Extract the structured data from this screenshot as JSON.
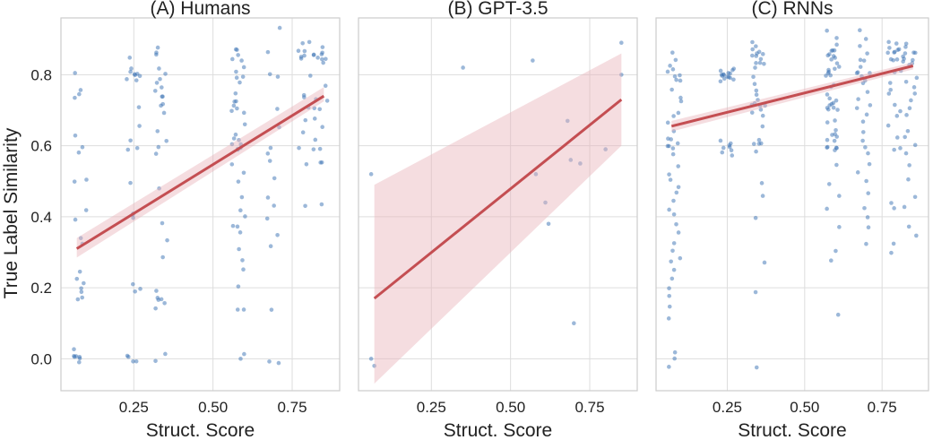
{
  "figure": {
    "ylabel": "True Label Similarity"
  },
  "style": {
    "point_color": "#3a72b3",
    "line_color": "#c44e52",
    "band_color": "#e8b4ba",
    "grid_color": "#dddddd",
    "frame_color": "#cccccc",
    "background": "#ffffff"
  },
  "chart_data": [
    {
      "type": "scatter",
      "title": "(A) Humans",
      "xlabel": "Struct. Score",
      "ylabel": "True Label Similarity",
      "xlim": [
        0.02,
        0.9
      ],
      "ylim": [
        -0.09,
        0.96
      ],
      "xticks": [
        0.25,
        0.5,
        0.75
      ],
      "xtick_labels": [
        "0.25",
        "0.50",
        "0.75"
      ],
      "yticks": [
        0.0,
        0.2,
        0.4,
        0.6,
        0.8
      ],
      "ytick_labels": [
        "0.0",
        "0.2",
        "0.4",
        "0.6",
        "0.8"
      ],
      "grid": true,
      "regression": {
        "x": [
          0.07,
          0.85
        ],
        "y": [
          0.31,
          0.74
        ],
        "band_low": [
          0.285,
          0.725
        ],
        "band_high": [
          0.34,
          0.765
        ]
      },
      "clusters": [
        {
          "x": 0.08,
          "y": [
            0.0,
            0.01,
            -0.01,
            0.02,
            0.2,
            0.22,
            0.18,
            0.25,
            0.33,
            0.34,
            0.4,
            0.41,
            0.5,
            0.51,
            0.58,
            0.6,
            0.62,
            0.75,
            0.76,
            0.8,
            0.17,
            0.0,
            0.0,
            0.01,
            0.19,
            0.21,
            0.74
          ]
        },
        {
          "x": 0.25,
          "y": [
            0.0,
            0.01,
            -0.01,
            0.2,
            0.21,
            0.4,
            0.41,
            0.5,
            0.6,
            0.61,
            0.7,
            0.79,
            0.8,
            0.81,
            0.82,
            0.85,
            0.78,
            0.8,
            0.79,
            0.8,
            0.58,
            0.39,
            0.19,
            0.0,
            0.66
          ]
        },
        {
          "x": 0.34,
          "y": [
            0.0,
            0.01,
            0.15,
            0.16,
            0.18,
            0.2,
            0.28,
            0.34,
            0.39,
            0.48,
            0.58,
            0.6,
            0.62,
            0.65,
            0.7,
            0.72,
            0.74,
            0.75,
            0.76,
            0.78,
            0.8,
            0.82,
            0.85,
            0.87,
            0.88,
            0.14,
            0.17,
            0.71,
            0.74,
            0.77
          ]
        },
        {
          "x": 0.58,
          "y": [
            0.0,
            0.01,
            0.13,
            0.14,
            0.2,
            0.27,
            0.3,
            0.35,
            0.38,
            0.4,
            0.42,
            0.45,
            0.5,
            0.52,
            0.55,
            0.58,
            0.6,
            0.61,
            0.62,
            0.64,
            0.66,
            0.7,
            0.71,
            0.72,
            0.74,
            0.78,
            0.8,
            0.81,
            0.82,
            0.85,
            0.86,
            0.87,
            0.88,
            0.6,
            0.59,
            0.7,
            0.71,
            0.8,
            0.37,
            0.26,
            0.62,
            0.73,
            0.84
          ]
        },
        {
          "x": 0.69,
          "y": [
            -0.01,
            -0.02,
            0.13,
            0.35,
            0.4,
            0.45,
            0.5,
            0.56,
            0.6,
            0.65,
            0.7,
            0.8,
            0.86,
            0.93,
            0.32,
            0.43,
            0.58,
            0.79
          ]
        },
        {
          "x": 0.79,
          "y": [
            0.43,
            0.55,
            0.6,
            0.63,
            0.7,
            0.73,
            0.75,
            0.8,
            0.85,
            0.87,
            0.88,
            0.89,
            0.68,
            0.86,
            0.87,
            0.85
          ]
        },
        {
          "x": 0.84,
          "y": [
            0.44,
            0.55,
            0.56,
            0.59,
            0.6,
            0.66,
            0.68,
            0.7,
            0.72,
            0.74,
            0.76,
            0.84,
            0.85,
            0.86,
            0.87,
            0.88,
            0.84,
            0.85,
            0.83,
            0.86,
            0.62,
            0.71
          ]
        }
      ]
    },
    {
      "type": "scatter",
      "title": "(B) GPT-3.5",
      "xlabel": "Struct. Score",
      "ylabel": "",
      "xlim": [
        0.02,
        0.9
      ],
      "ylim": [
        -0.09,
        0.96
      ],
      "xticks": [
        0.25,
        0.5,
        0.75
      ],
      "xtick_labels": [
        "0.25",
        "0.50",
        "0.75"
      ],
      "yticks": [
        0.0,
        0.2,
        0.4,
        0.6,
        0.8
      ],
      "ytick_labels": [
        "",
        "",
        "",
        "",
        ""
      ],
      "grid": true,
      "regression": {
        "x": [
          0.07,
          0.85
        ],
        "y": [
          0.17,
          0.73
        ],
        "band_low": [
          -0.07,
          0.6
        ],
        "band_high": [
          0.49,
          0.86
        ]
      },
      "points": [
        {
          "x": 0.06,
          "y": 0.52
        },
        {
          "x": 0.06,
          "y": 0.0
        },
        {
          "x": 0.07,
          "y": -0.02
        },
        {
          "x": 0.35,
          "y": 0.82
        },
        {
          "x": 0.57,
          "y": 0.84
        },
        {
          "x": 0.58,
          "y": 0.52
        },
        {
          "x": 0.61,
          "y": 0.44
        },
        {
          "x": 0.62,
          "y": 0.38
        },
        {
          "x": 0.68,
          "y": 0.67
        },
        {
          "x": 0.69,
          "y": 0.56
        },
        {
          "x": 0.7,
          "y": 0.1
        },
        {
          "x": 0.72,
          "y": 0.55
        },
        {
          "x": 0.8,
          "y": 0.59
        },
        {
          "x": 0.85,
          "y": 0.8
        },
        {
          "x": 0.85,
          "y": 0.89
        }
      ]
    },
    {
      "type": "scatter",
      "title": "(C) RNNs",
      "xlabel": "Struct. Score",
      "ylabel": "",
      "xlim": [
        0.02,
        0.9
      ],
      "ylim": [
        -0.09,
        0.96
      ],
      "xticks": [
        0.25,
        0.5,
        0.75
      ],
      "xtick_labels": [
        "0.25",
        "0.50",
        "0.75"
      ],
      "yticks": [
        0.0,
        0.2,
        0.4,
        0.6,
        0.8
      ],
      "ytick_labels": [
        "",
        "",
        "",
        "",
        ""
      ],
      "grid": true,
      "regression": {
        "x": [
          0.07,
          0.85
        ],
        "y": [
          0.655,
          0.825
        ],
        "band_low": [
          0.64,
          0.815
        ],
        "band_high": [
          0.67,
          0.835
        ]
      },
      "clusters": [
        {
          "x": 0.08,
          "y": [
            0.0,
            0.01,
            -0.02,
            0.12,
            0.15,
            0.18,
            0.2,
            0.22,
            0.25,
            0.28,
            0.3,
            0.33,
            0.36,
            0.38,
            0.4,
            0.42,
            0.45,
            0.48,
            0.5,
            0.52,
            0.55,
            0.58,
            0.6,
            0.61,
            0.62,
            0.64,
            0.66,
            0.68,
            0.7,
            0.72,
            0.74,
            0.76,
            0.78,
            0.8,
            0.81,
            0.82,
            0.84,
            0.86,
            0.6,
            0.6,
            0.8,
            0.8,
            0.79,
            0.61,
            0.27,
            0.47
          ]
        },
        {
          "x": 0.25,
          "y": [
            0.58,
            0.59,
            0.6,
            0.61,
            0.62,
            0.78,
            0.79,
            0.8,
            0.8,
            0.8,
            0.8,
            0.81,
            0.8,
            0.79,
            0.81,
            0.8,
            0.8,
            0.79,
            0.8,
            0.81,
            0.6,
            0.6,
            0.59
          ]
        },
        {
          "x": 0.35,
          "y": [
            -0.02,
            0.18,
            0.28,
            0.4,
            0.45,
            0.5,
            0.58,
            0.6,
            0.62,
            0.65,
            0.68,
            0.7,
            0.71,
            0.72,
            0.73,
            0.75,
            0.76,
            0.78,
            0.8,
            0.82,
            0.84,
            0.85,
            0.86,
            0.87,
            0.88,
            0.89,
            0.85,
            0.86,
            0.84,
            0.83,
            0.72,
            0.7,
            0.71,
            0.6,
            0.6,
            0.85,
            0.86
          ]
        },
        {
          "x": 0.59,
          "y": [
            0.12,
            0.27,
            0.3,
            0.38,
            0.42,
            0.45,
            0.5,
            0.55,
            0.58,
            0.6,
            0.6,
            0.61,
            0.62,
            0.63,
            0.64,
            0.65,
            0.66,
            0.68,
            0.7,
            0.71,
            0.71,
            0.72,
            0.73,
            0.74,
            0.75,
            0.77,
            0.78,
            0.8,
            0.8,
            0.81,
            0.82,
            0.83,
            0.84,
            0.85,
            0.85,
            0.86,
            0.86,
            0.87,
            0.88,
            0.9,
            0.92,
            0.85,
            0.86,
            0.84,
            0.8,
            0.8,
            0.71,
            0.7,
            0.72,
            0.6,
            0.61,
            0.59
          ]
        },
        {
          "x": 0.69,
          "y": [
            0.33,
            0.37,
            0.4,
            0.43,
            0.47,
            0.5,
            0.52,
            0.55,
            0.58,
            0.6,
            0.62,
            0.64,
            0.66,
            0.68,
            0.7,
            0.72,
            0.74,
            0.76,
            0.78,
            0.8,
            0.81,
            0.82,
            0.84,
            0.85,
            0.86,
            0.88,
            0.9,
            0.93,
            0.8,
            0.79,
            0.81
          ]
        },
        {
          "x": 0.79,
          "y": [
            0.29,
            0.33,
            0.42,
            0.43,
            0.58,
            0.6,
            0.62,
            0.65,
            0.68,
            0.7,
            0.72,
            0.74,
            0.76,
            0.78,
            0.8,
            0.82,
            0.84,
            0.85,
            0.86,
            0.87,
            0.88,
            0.89,
            0.87,
            0.86,
            0.88,
            0.85,
            0.87
          ]
        },
        {
          "x": 0.84,
          "y": [
            0.34,
            0.38,
            0.42,
            0.45,
            0.5,
            0.55,
            0.58,
            0.6,
            0.62,
            0.65,
            0.68,
            0.7,
            0.72,
            0.74,
            0.76,
            0.78,
            0.8,
            0.82,
            0.84,
            0.85,
            0.86,
            0.87,
            0.88,
            0.85,
            0.86,
            0.84,
            0.85,
            0.87
          ]
        }
      ]
    }
  ]
}
